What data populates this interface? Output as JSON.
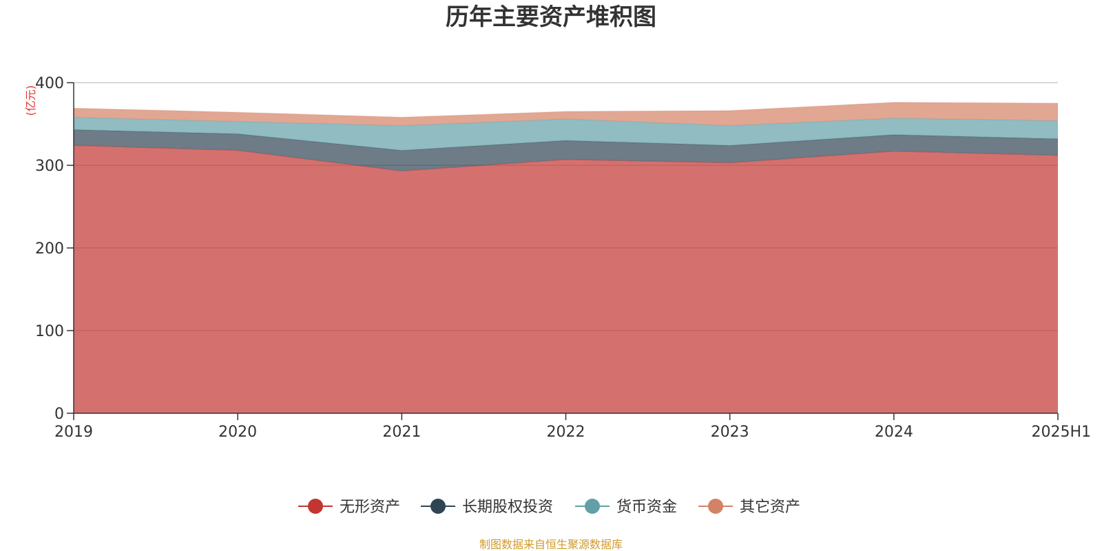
{
  "chart_data": {
    "type": "area",
    "stacked": true,
    "title": "历年主要资产堆积图",
    "unit_label": "(亿元)",
    "categories": [
      "2019",
      "2020",
      "2021",
      "2022",
      "2023",
      "2024",
      "2025H1"
    ],
    "ylim": [
      0,
      400
    ],
    "yticks": [
      0,
      100,
      200,
      300,
      400
    ],
    "grid": true,
    "legend_position": "bottom",
    "series": [
      {
        "name": "无形资产",
        "color": "#c23531",
        "values": [
          324,
          318,
          293,
          307,
          303,
          317,
          312
        ]
      },
      {
        "name": "长期股权投资",
        "color": "#2f4554",
        "values": [
          19,
          20,
          25,
          23,
          21,
          20,
          20
        ]
      },
      {
        "name": "货币资金",
        "color": "#61a0a8",
        "values": [
          15,
          15,
          30,
          26,
          24,
          20,
          22
        ]
      },
      {
        "name": "其它资产",
        "color": "#d48265",
        "values": [
          11,
          11,
          10,
          9,
          18,
          19,
          21
        ]
      }
    ]
  },
  "source_text": "制图数据来自恒生聚源数据库"
}
